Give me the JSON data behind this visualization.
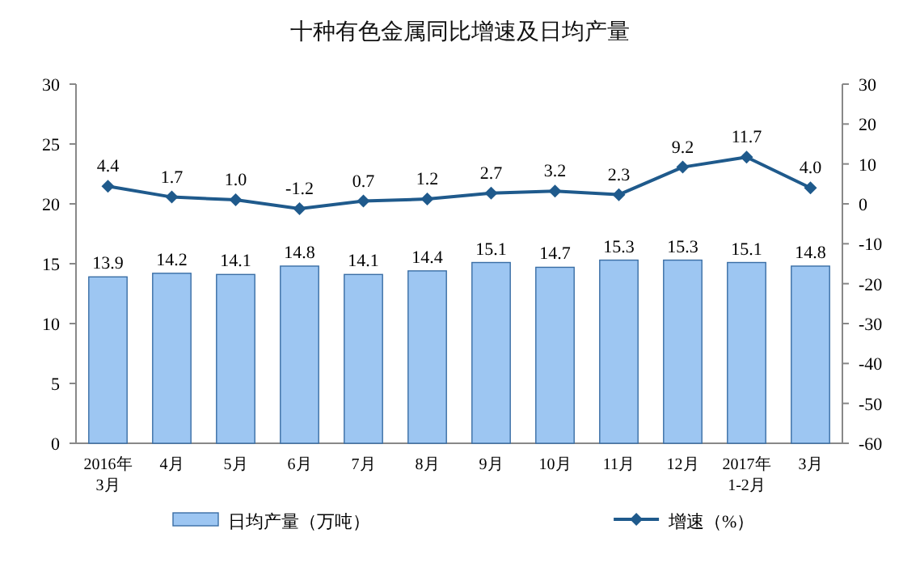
{
  "chart_data": {
    "type": "bar",
    "title": "十种有色金属同比增速及日均产量",
    "categories": [
      "2016年\n3月",
      "4月",
      "5月",
      "6月",
      "7月",
      "8月",
      "9月",
      "10月",
      "11月",
      "12月",
      "2017年\n1-2月",
      "3月"
    ],
    "series": [
      {
        "name": "日均产量（万吨）",
        "color": "#9dc6f2",
        "values": [
          13.9,
          14.2,
          14.1,
          14.8,
          14.1,
          14.4,
          15.1,
          14.7,
          15.3,
          15.3,
          15.1,
          14.8
        ],
        "value_labels": [
          "13.9",
          "14.2",
          "14.1",
          "14.8",
          "14.1",
          "14.4",
          "15.1",
          "14.7",
          "15.3",
          "15.3",
          "15.1",
          "14.8"
        ]
      },
      {
        "name": "增速（%）",
        "type": "line",
        "axis": "y2",
        "color": "#1f5a8c",
        "marker": "diamond",
        "values": [
          4.4,
          1.7,
          1.0,
          -1.2,
          0.7,
          1.2,
          2.7,
          3.2,
          2.3,
          9.2,
          11.7,
          4.0
        ],
        "value_labels": [
          "4.4",
          "1.7",
          "1.0",
          "-1.2",
          "0.7",
          "1.2",
          "2.7",
          "3.2",
          "2.3",
          "9.2",
          "11.7",
          "4.0"
        ]
      }
    ],
    "ylim": [
      0,
      30
    ],
    "yticks": [
      0,
      5,
      10,
      15,
      20,
      25,
      30
    ],
    "y2lim": [
      -60,
      30
    ],
    "y2ticks": [
      -60,
      -50,
      -40,
      -30,
      -20,
      -10,
      0,
      10,
      20,
      30
    ],
    "legend": "bottom",
    "grid": false
  }
}
